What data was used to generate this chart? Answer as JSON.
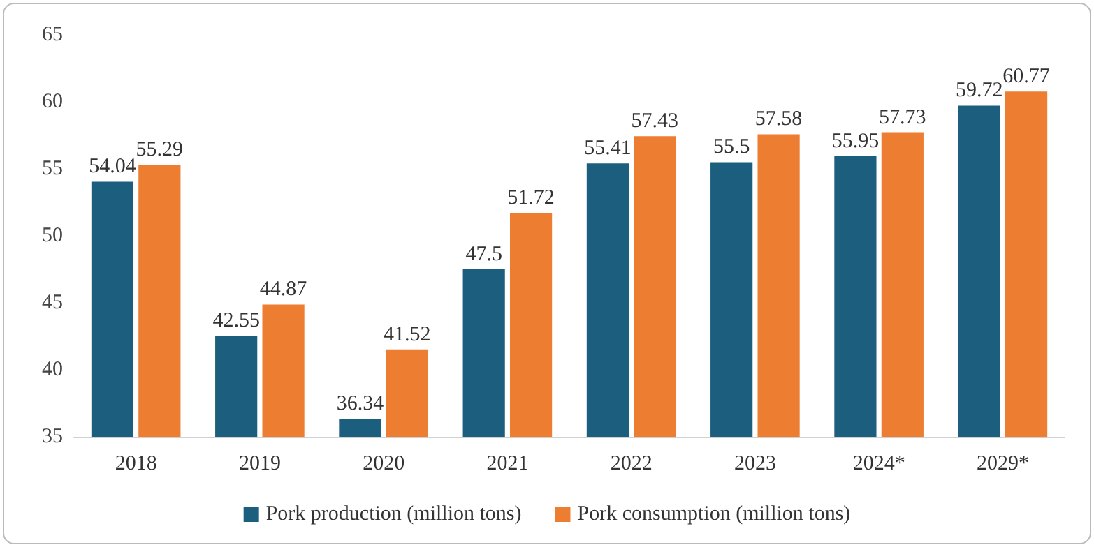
{
  "chart_data": {
    "type": "bar",
    "categories": [
      "2018",
      "2019",
      "2020",
      "2021",
      "2022",
      "2023",
      "2024*",
      "2029*"
    ],
    "series": [
      {
        "name": "Pork production (million tons)",
        "color": "#1b5e7e",
        "values": [
          54.04,
          42.55,
          36.34,
          47.5,
          55.41,
          55.5,
          55.95,
          59.72
        ]
      },
      {
        "name": "Pork consumption (million tons)",
        "color": "#ed7d31",
        "values": [
          55.29,
          44.87,
          41.52,
          51.72,
          57.43,
          57.58,
          57.73,
          60.77
        ]
      }
    ],
    "ylim": [
      35,
      65
    ],
    "yticks": [
      35,
      40,
      45,
      50,
      55,
      60,
      65
    ],
    "grid": false,
    "legend": "bottom",
    "data_labels": true
  }
}
